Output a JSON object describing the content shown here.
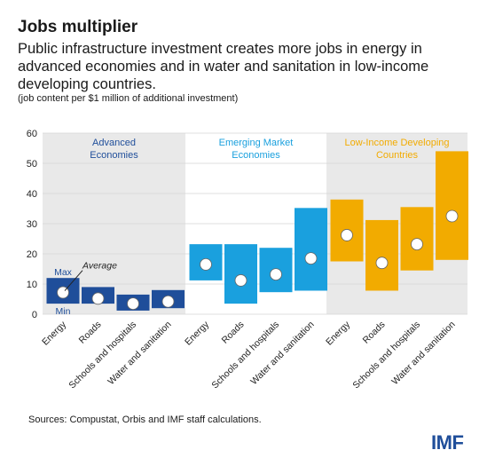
{
  "header": {
    "title": "Jobs multiplier",
    "subtitle": "Public infrastructure investment creates more jobs in energy in advanced economies and in water and sanitation in low-income developing countries.",
    "units": "(job content per $1 million of additional investment)"
  },
  "footer": {
    "source": "Sources: Compustat, Orbis and IMF staff calculations.",
    "logo_text": "IMF"
  },
  "colors": {
    "advanced": "#1f4e9a",
    "emerging": "#1aa0de",
    "lowincome": "#f2ab00",
    "panel_bg": "#e9e9e9"
  },
  "chart_data": {
    "type": "range-bar",
    "ylim": [
      0,
      60
    ],
    "yticks": [
      0,
      10,
      20,
      30,
      40,
      50,
      60
    ],
    "categories": [
      "Energy",
      "Roads",
      "Schools and hospitals",
      "Water and sanitation"
    ],
    "annotations": {
      "max": "Max",
      "min": "Min",
      "average": "Average"
    },
    "groups": [
      {
        "name": "Advanced Economies",
        "name_lines": [
          "Advanced",
          "Economies"
        ],
        "color": "#1f4e9a",
        "min": [
          3.5,
          3.5,
          1.2,
          2.0
        ],
        "max": [
          12.0,
          9.0,
          6.5,
          8.0
        ],
        "avg": [
          7.2,
          5.2,
          3.5,
          4.2
        ]
      },
      {
        "name": "Emerging Market Economies",
        "name_lines": [
          "Emerging Market",
          "Economies"
        ],
        "color": "#1aa0de",
        "min": [
          11.2,
          3.5,
          7.3,
          7.8
        ],
        "max": [
          23.2,
          23.2,
          22.0,
          35.2
        ],
        "avg": [
          16.5,
          11.2,
          13.2,
          18.5
        ]
      },
      {
        "name": "Low-Income Developing Countries",
        "name_lines": [
          "Low-Income Developing",
          "Countries"
        ],
        "color": "#f2ab00",
        "min": [
          17.5,
          7.8,
          14.5,
          18.0
        ],
        "max": [
          38.0,
          31.2,
          35.5,
          54.0
        ],
        "avg": [
          26.2,
          17.0,
          23.2,
          32.5
        ]
      }
    ]
  }
}
